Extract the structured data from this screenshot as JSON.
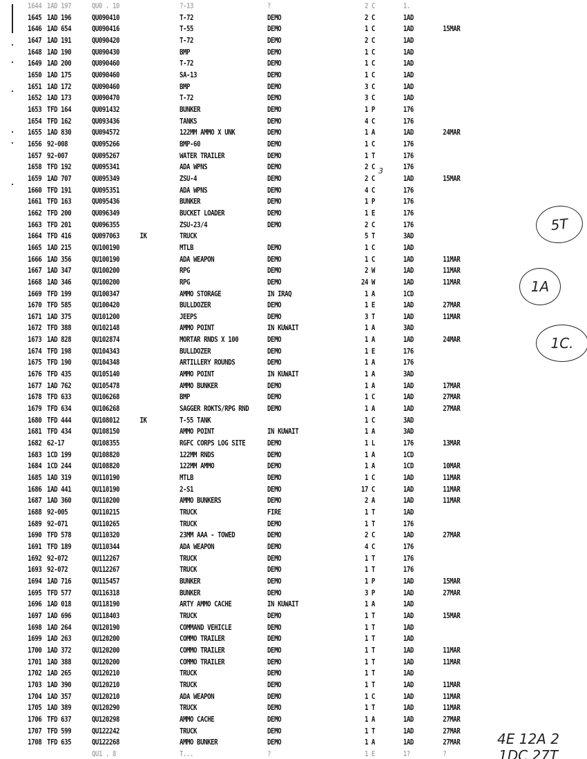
{
  "rows": [
    [
      "1644",
      "1AD 197",
      "QU0 . 10",
      "",
      "?-13",
      "?",
      "2",
      "C",
      "1.",
      ""
    ],
    [
      "1645",
      "1AD 196",
      "QU090410",
      "",
      "T-72",
      "DEMO",
      "2",
      "C",
      "1AD",
      ""
    ],
    [
      "1646",
      "1AD 654",
      "QU090416",
      "",
      "T-55",
      "DEMO",
      "1",
      "C",
      "1AD",
      "15MAR"
    ],
    [
      "1647",
      "1AD 191",
      "QU090420",
      "",
      "T-72",
      "DEMO",
      "2",
      "C",
      "1AD",
      ""
    ],
    [
      "1648",
      "1AD 190",
      "QU090430",
      "",
      "BMP",
      "DEMO",
      "1",
      "C",
      "1AD",
      ""
    ],
    [
      "1649",
      "1AD 200",
      "QU090460",
      "",
      "T-72",
      "DEMO",
      "1",
      "C",
      "1AD",
      ""
    ],
    [
      "1650",
      "1AD 175",
      "QU090460",
      "",
      "SA-13",
      "DEMO",
      "1",
      "C",
      "1AD",
      ""
    ],
    [
      "1651",
      "1AD 172",
      "QU090460",
      "",
      "BMP",
      "DEMO",
      "3",
      "C",
      "1AD",
      ""
    ],
    [
      "1652",
      "1AD 173",
      "QU090470",
      "",
      "T-72",
      "DEMO",
      "3",
      "C",
      "1AD",
      ""
    ],
    [
      "1653",
      "TFD 164",
      "QU091432",
      "",
      "BUNKER",
      "DEMO",
      "1",
      "P",
      "176",
      ""
    ],
    [
      "1654",
      "TFD 162",
      "QU093436",
      "",
      "TANKS",
      "DEMO",
      "4",
      "C",
      "176",
      ""
    ],
    [
      "1655",
      "1AD 830",
      "QU094572",
      "",
      "122MM AMMO X UNK",
      "DEMO",
      "1",
      "A",
      "1AD",
      "24MAR"
    ],
    [
      "1656",
      "92-008",
      "QU095266",
      "",
      "BMP-60",
      "DEMO",
      "1",
      "C",
      "176",
      ""
    ],
    [
      "1657",
      "92-007",
      "QU095267",
      "",
      "WATER TRAILER",
      "DEMO",
      "1",
      "T",
      "176",
      ""
    ],
    [
      "1658",
      "TFD 192",
      "QU095341",
      "",
      "ADA WPNS",
      "DEMO",
      "2",
      "C",
      "176",
      ""
    ],
    [
      "1659",
      "1AD 707",
      "QU095349",
      "",
      "ZSU-4",
      "DEMO",
      "2",
      "C",
      "1AD",
      "15MAR"
    ],
    [
      "1660",
      "TFD 191",
      "QU095351",
      "",
      "ADA WPNS",
      "DEMO",
      "4",
      "C",
      "176",
      ""
    ],
    [
      "1661",
      "TFD 163",
      "QU095436",
      "",
      "BUNKER",
      "DEMO",
      "1",
      "P",
      "176",
      ""
    ],
    [
      "1662",
      "TFD 200",
      "QU096349",
      "",
      "BUCKET LOADER",
      "DEMO",
      "1",
      "E",
      "176",
      ""
    ],
    [
      "1663",
      "TFD 201",
      "QU096355",
      "",
      "ZSU-23/4",
      "DEMO",
      "2",
      "C",
      "176",
      ""
    ],
    [
      "1664",
      "TFD 416",
      "QU097063",
      "IK",
      "TRUCK",
      "",
      "5",
      "T",
      "3AD",
      ""
    ],
    [
      "1665",
      "1AD 215",
      "QU100190",
      "",
      "MTLB",
      "DEMO",
      "1",
      "C",
      "1AD",
      ""
    ],
    [
      "1666",
      "1AD 356",
      "QU100190",
      "",
      "ADA WEAPON",
      "DEMO",
      "1",
      "C",
      "1AD",
      "11MAR"
    ],
    [
      "1667",
      "1AD 347",
      "QU100200",
      "",
      "RPG",
      "DEMO",
      "2",
      "W",
      "1AD",
      "11MAR"
    ],
    [
      "1668",
      "1AD 346",
      "QU100200",
      "",
      "RPG",
      "DEMO",
      "24",
      "W",
      "1AD",
      "11MAR"
    ],
    [
      "1669",
      "TFD 199",
      "QU100347",
      "",
      "AMMO STORAGE",
      "IN IRAQ",
      "1",
      "A",
      "1CD",
      ""
    ],
    [
      "1670",
      "TFD 585",
      "QU100420",
      "",
      "BULLDOZER",
      "DEMO",
      "1",
      "E",
      "1AD",
      "27MAR"
    ],
    [
      "1671",
      "1AD 375",
      "QU101200",
      "",
      "JEEPS",
      "DEMO",
      "3",
      "T",
      "1AD",
      "11MAR"
    ],
    [
      "1672",
      "TFD 388",
      "QU102148",
      "",
      "AMMO POINT",
      "IN KUWAIT",
      "1",
      "A",
      "3AD",
      ""
    ],
    [
      "1673",
      "1AD 828",
      "QU102874",
      "",
      "MORTAR RNDS X 100",
      "DEMO",
      "1",
      "A",
      "1AD",
      "24MAR"
    ],
    [
      "1674",
      "TFD 198",
      "QU104343",
      "",
      "BULLDOZER",
      "DEMO",
      "1",
      "E",
      "176",
      ""
    ],
    [
      "1675",
      "TFD 190",
      "QU104348",
      "",
      "ARTILLERY ROUNDS",
      "DEMO",
      "1",
      "A",
      "176",
      ""
    ],
    [
      "1676",
      "TFD 435",
      "QU105140",
      "",
      "AMMO POINT",
      "IN KUWAIT",
      "1",
      "A",
      "3AD",
      ""
    ],
    [
      "1677",
      "1AD 762",
      "QU105478",
      "",
      "AMMO BUNKER",
      "DEMO",
      "1",
      "A",
      "1AD",
      "17MAR"
    ],
    [
      "1678",
      "TFD 633",
      "QU106268",
      "",
      "BMP",
      "DEMO",
      "1",
      "C",
      "1AD",
      "27MAR"
    ],
    [
      "1679",
      "TFD 634",
      "QU106268",
      "",
      "SAGGER ROKTS/RPG RND",
      "DEMO",
      "1",
      "A",
      "1AD",
      "27MAR"
    ],
    [
      "1680",
      "TFD 444",
      "QU108012",
      "IK",
      "T-55 TANK",
      "",
      "1",
      "C",
      "3AD",
      ""
    ],
    [
      "1681",
      "TFD 434",
      "QU108150",
      "",
      "AMMO POINT",
      "IN KUWAIT",
      "1",
      "A",
      "3AD",
      ""
    ],
    [
      "1682",
      "62-17",
      "QU108355",
      "",
      "RGFC CORPS LOG SITE",
      "DEMO",
      "1",
      "L",
      "176",
      "13MAR"
    ],
    [
      "1683",
      "1CD 199",
      "QU108820",
      "",
      "122MM RNDS",
      "DEMO",
      "1",
      "A",
      "1CD",
      ""
    ],
    [
      "1684",
      "1CD 244",
      "QU108820",
      "",
      "122MM AMMO",
      "DEMO",
      "1",
      "A",
      "1CD",
      "10MAR"
    ],
    [
      "1685",
      "1AD 319",
      "QU110190",
      "",
      "MTLB",
      "DEMO",
      "1",
      "C",
      "1AD",
      "11MAR"
    ],
    [
      "1686",
      "1AD 441",
      "QU110190",
      "",
      "2-S1",
      "DEMO",
      "17",
      "C",
      "1AD",
      "11MAR"
    ],
    [
      "1687",
      "1AD 360",
      "QU110200",
      "",
      "AMMO BUNKERS",
      "DEMO",
      "2",
      "A",
      "1AD",
      "11MAR"
    ],
    [
      "1688",
      "92-005",
      "QU110215",
      "",
      "TRUCK",
      "FIRE",
      "1",
      "T",
      "1AD",
      ""
    ],
    [
      "1689",
      "92-071",
      "QU110265",
      "",
      "TRUCK",
      "DEMO",
      "1",
      "T",
      "176",
      ""
    ],
    [
      "1690",
      "TFD 578",
      "QU110320",
      "",
      "23MM AAA - TOWED",
      "DEMO",
      "2",
      "C",
      "1AD",
      "27MAR"
    ],
    [
      "1691",
      "TFD 189",
      "QU110344",
      "",
      "ADA WEAPON",
      "DEMO",
      "4",
      "C",
      "176",
      ""
    ],
    [
      "1692",
      "92-072",
      "QU112267",
      "",
      "TRUCK",
      "DEMO",
      "1",
      "T",
      "176",
      ""
    ],
    [
      "1693",
      "92-072",
      "QU112267",
      "",
      "TRUCK",
      "DEMO",
      "1",
      "T",
      "176",
      ""
    ],
    [
      "1694",
      "1AD 716",
      "QU115457",
      "",
      "BUNKER",
      "DEMO",
      "1",
      "P",
      "1AD",
      "15MAR"
    ],
    [
      "1695",
      "TFD 577",
      "QU116318",
      "",
      "BUNKER",
      "DEMO",
      "3",
      "P",
      "1AD",
      "27MAR"
    ],
    [
      "1696",
      "1AD 018",
      "QU118190",
      "",
      "ARTY AMMO CACHE",
      "IN KUWAIT",
      "1",
      "A",
      "1AD",
      ""
    ],
    [
      "1697",
      "1AD 696",
      "QU118403",
      "",
      "TRUCK",
      "DEMO",
      "1",
      "T",
      "1AD",
      "15MAR"
    ],
    [
      "1698",
      "1AD 264",
      "QU120190",
      "",
      "COMMAND VEHICLE",
      "DEMO",
      "1",
      "T",
      "1AD",
      ""
    ],
    [
      "1699",
      "1AD 263",
      "QU120200",
      "",
      "COMMO TRAILER",
      "DEMO",
      "1",
      "T",
      "1AD",
      ""
    ],
    [
      "1700",
      "1AD 372",
      "QU120200",
      "",
      "COMMO TRAILER",
      "DEMO",
      "1",
      "T",
      "1AD",
      "11MAR"
    ],
    [
      "1701",
      "1AD 388",
      "QU120200",
      "",
      "COMMO TRAILER",
      "DEMO",
      "1",
      "T",
      "1AD",
      "11MAR"
    ],
    [
      "1702",
      "1AD 265",
      "QU120210",
      "",
      "TRUCK",
      "DEMO",
      "1",
      "T",
      "1AD",
      ""
    ],
    [
      "1703",
      "1AD 390",
      "QU120210",
      "",
      "TRUCK",
      "DEMO",
      "1",
      "T",
      "1AD",
      "11MAR"
    ],
    [
      "1704",
      "1AD 357",
      "QU120210",
      "",
      "ADA WEAPON",
      "DEMO",
      "1",
      "C",
      "1AD",
      "11MAR"
    ],
    [
      "1705",
      "1AD 389",
      "QU120290",
      "",
      "TRUCK",
      "DEMO",
      "1",
      "T",
      "1AD",
      "11MAR"
    ],
    [
      "1706",
      "TFD 637",
      "QU120298",
      "",
      "AMMO CACHE",
      "DEMO",
      "1",
      "A",
      "1AD",
      "27MAR"
    ],
    [
      "1707",
      "TFD 599",
      "QU122242",
      "",
      "TRUCK",
      "DEMO",
      "1",
      "T",
      "1AD",
      "27MAR"
    ],
    [
      "1708",
      "TFD 635",
      "QU122268",
      "",
      "AMMO BUNKER",
      "DEMO",
      "1",
      "A",
      "1AD",
      "27MAR"
    ],
    [
      "",
      "",
      "QU1 . 8",
      "",
      "T...",
      "?",
      "1",
      "E",
      "1?",
      "?"
    ]
  ],
  "handwritten": {
    "circle_1": "5T",
    "circle_2": "1A",
    "circle_3": "1C.",
    "inline_note": "3",
    "bottom_line_1": "4E  12A  2",
    "bottom_line_2": "1DC  27T"
  }
}
